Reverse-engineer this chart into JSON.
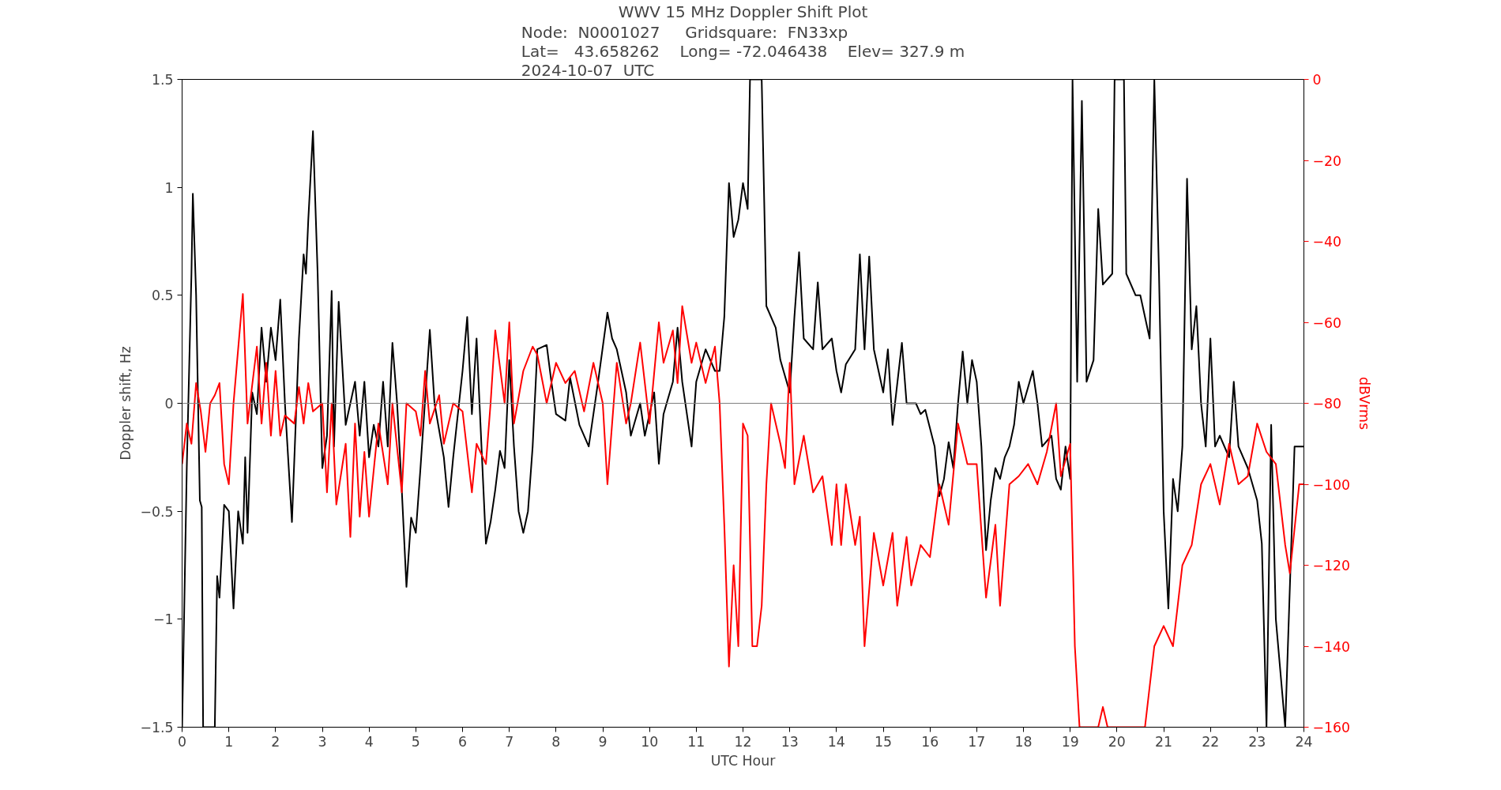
{
  "chart_data": {
    "type": "line",
    "title": "WWV 15 MHz Doppler Shift Plot",
    "subtitle": "Node:  N0001027     Gridsquare:  FN33xp\nLat=   43.658262    Long= -72.046438    Elev= 327.9 m\n2024-10-07  UTC",
    "xlabel": "UTC Hour",
    "ylabel": "Doppler shift, Hz",
    "y2label": "dBVrms",
    "xlim": [
      0,
      24
    ],
    "xticks": [
      0,
      1,
      2,
      3,
      4,
      5,
      6,
      7,
      8,
      9,
      10,
      11,
      12,
      13,
      14,
      15,
      16,
      17,
      18,
      19,
      20,
      21,
      22,
      23,
      24
    ],
    "ylim": [
      -1.5,
      1.5
    ],
    "yticks": [
      -1.5,
      -1.0,
      -0.5,
      0.0,
      0.5,
      1.0,
      1.5
    ],
    "y2lim": [
      -160,
      0
    ],
    "y2ticks": [
      -160,
      -140,
      -120,
      -100,
      -80,
      -60,
      -40,
      -20,
      0
    ],
    "grid": false,
    "ref_lines": [
      {
        "axis": "y",
        "value": 0,
        "color": "#808080"
      }
    ],
    "series": [
      {
        "color": "#000000",
        "x": [
          0.0,
          0.1,
          0.2,
          0.23,
          0.3,
          0.38,
          0.42,
          0.45,
          0.7,
          0.75,
          0.8,
          0.9,
          1.0,
          1.1,
          1.2,
          1.3,
          1.35,
          1.4,
          1.5,
          1.6,
          1.7,
          1.8,
          1.9,
          2.0,
          2.1,
          2.2,
          2.35,
          2.5,
          2.6,
          2.65,
          2.7,
          2.8,
          2.9,
          3.0,
          3.1,
          3.2,
          3.25,
          3.35,
          3.5,
          3.7,
          3.8,
          3.9,
          4.0,
          4.1,
          4.2,
          4.3,
          4.4,
          4.5,
          4.6,
          4.7,
          4.8,
          4.9,
          5.0,
          5.1,
          5.3,
          5.4,
          5.6,
          5.7,
          5.8,
          6.0,
          6.1,
          6.2,
          6.3,
          6.5,
          6.6,
          6.7,
          6.8,
          6.9,
          7.0,
          7.1,
          7.2,
          7.3,
          7.4,
          7.5,
          7.6,
          7.8,
          7.9,
          8.0,
          8.2,
          8.3,
          8.5,
          8.7,
          8.9,
          9.1,
          9.2,
          9.3,
          9.5,
          9.6,
          9.8,
          9.9,
          10.1,
          10.2,
          10.3,
          10.5,
          10.6,
          10.7,
          10.9,
          11.0,
          11.2,
          11.4,
          11.5,
          11.6,
          11.7,
          11.8,
          11.9,
          12.0,
          12.1,
          12.15,
          12.4,
          12.5,
          12.7,
          12.8,
          13.0,
          13.1,
          13.2,
          13.3,
          13.5,
          13.6,
          13.7,
          13.9,
          14.0,
          14.1,
          14.2,
          14.4,
          14.5,
          14.6,
          14.7,
          14.8,
          15.0,
          15.1,
          15.2,
          15.4,
          15.5,
          15.7,
          15.8,
          15.9,
          16.1,
          16.2,
          16.3,
          16.4,
          16.5,
          16.6,
          16.7,
          16.8,
          16.9,
          17.0,
          17.1,
          17.2,
          17.3,
          17.4,
          17.5,
          17.6,
          17.7,
          17.8,
          17.9,
          18.0,
          18.2,
          18.3,
          18.4,
          18.6,
          18.7,
          18.8,
          18.9,
          19.0,
          19.05,
          19.15,
          19.25,
          19.35,
          19.5,
          19.6,
          19.7,
          19.9,
          19.95,
          20.15,
          20.2,
          20.4,
          20.5,
          20.7,
          20.8,
          20.9,
          21.0,
          21.1,
          21.2,
          21.3,
          21.4,
          21.5,
          21.6,
          21.7,
          21.8,
          21.9,
          22.0,
          22.1,
          22.2,
          22.4,
          22.5,
          22.6,
          22.8,
          23.0,
          23.1,
          23.2,
          23.3,
          23.4,
          23.6,
          23.8,
          24.0
        ],
        "values": [
          -1.5,
          -0.3,
          0.6,
          0.97,
          0.5,
          -0.45,
          -0.48,
          -1.5,
          -1.5,
          -0.8,
          -0.9,
          -0.47,
          -0.5,
          -0.95,
          -0.5,
          -0.65,
          -0.25,
          -0.6,
          0.05,
          -0.05,
          0.35,
          0.1,
          0.35,
          0.2,
          0.48,
          0.0,
          -0.55,
          0.3,
          0.69,
          0.6,
          0.85,
          1.26,
          0.6,
          -0.3,
          -0.15,
          0.52,
          -0.2,
          0.47,
          -0.1,
          0.1,
          -0.15,
          0.1,
          -0.25,
          -0.1,
          -0.2,
          0.1,
          -0.2,
          0.28,
          0.0,
          -0.4,
          -0.85,
          -0.53,
          -0.6,
          -0.3,
          0.34,
          0.0,
          -0.25,
          -0.48,
          -0.25,
          0.15,
          0.4,
          -0.05,
          0.3,
          -0.65,
          -0.55,
          -0.4,
          -0.22,
          -0.3,
          0.2,
          -0.2,
          -0.5,
          -0.6,
          -0.5,
          -0.2,
          0.25,
          0.27,
          0.1,
          -0.05,
          -0.08,
          0.12,
          -0.1,
          -0.2,
          0.1,
          0.42,
          0.3,
          0.25,
          0.05,
          -0.15,
          0.0,
          -0.15,
          0.05,
          -0.28,
          -0.05,
          0.1,
          0.35,
          0.1,
          -0.2,
          0.1,
          0.25,
          0.15,
          0.15,
          0.4,
          1.02,
          0.77,
          0.85,
          1.02,
          0.9,
          1.5,
          1.5,
          0.45,
          0.35,
          0.2,
          0.05,
          0.4,
          0.7,
          0.3,
          0.25,
          0.56,
          0.25,
          0.3,
          0.15,
          0.05,
          0.18,
          0.25,
          0.69,
          0.25,
          0.68,
          0.25,
          0.05,
          0.25,
          -0.1,
          0.28,
          0.0,
          0.0,
          -0.05,
          -0.03,
          -0.2,
          -0.43,
          -0.35,
          -0.18,
          -0.3,
          0.0,
          0.24,
          0.0,
          0.2,
          0.1,
          -0.2,
          -0.68,
          -0.45,
          -0.3,
          -0.35,
          -0.25,
          -0.2,
          -0.1,
          0.1,
          0.0,
          0.15,
          0.0,
          -0.2,
          -0.15,
          -0.35,
          -0.4,
          -0.2,
          -0.35,
          1.5,
          0.1,
          1.4,
          0.1,
          0.2,
          0.9,
          0.55,
          0.6,
          1.5,
          1.5,
          0.6,
          0.5,
          0.5,
          0.3,
          1.5,
          0.6,
          -0.5,
          -0.95,
          -0.35,
          -0.5,
          -0.2,
          1.04,
          0.25,
          0.45,
          0.0,
          -0.2,
          0.3,
          -0.2,
          -0.15,
          -0.25,
          0.1,
          -0.2,
          -0.3,
          -0.45,
          -0.65,
          -1.5,
          -0.1,
          -1.0,
          -1.5,
          -0.2,
          -0.2
        ]
      },
      {
        "color": "#ff0000",
        "axis": "y2",
        "x": [
          0.0,
          0.1,
          0.2,
          0.3,
          0.4,
          0.5,
          0.6,
          0.7,
          0.8,
          0.9,
          1.0,
          1.1,
          1.3,
          1.4,
          1.6,
          1.7,
          1.8,
          1.9,
          2.0,
          2.1,
          2.2,
          2.4,
          2.5,
          2.6,
          2.7,
          2.8,
          3.0,
          3.1,
          3.2,
          3.3,
          3.5,
          3.6,
          3.7,
          3.8,
          3.9,
          4.0,
          4.2,
          4.4,
          4.5,
          4.7,
          4.8,
          5.0,
          5.1,
          5.2,
          5.3,
          5.5,
          5.6,
          5.8,
          6.0,
          6.2,
          6.3,
          6.5,
          6.6,
          6.7,
          6.9,
          7.0,
          7.1,
          7.3,
          7.5,
          7.6,
          7.8,
          8.0,
          8.2,
          8.4,
          8.6,
          8.8,
          9.0,
          9.1,
          9.3,
          9.5,
          9.6,
          9.8,
          10.0,
          10.2,
          10.3,
          10.5,
          10.6,
          10.7,
          10.9,
          11.0,
          11.2,
          11.4,
          11.5,
          11.6,
          11.7,
          11.8,
          11.9,
          12.0,
          12.1,
          12.2,
          12.3,
          12.4,
          12.5,
          12.6,
          12.8,
          12.9,
          13.0,
          13.1,
          13.3,
          13.5,
          13.7,
          13.9,
          14.0,
          14.1,
          14.2,
          14.4,
          14.5,
          14.6,
          14.8,
          15.0,
          15.2,
          15.3,
          15.5,
          15.6,
          15.8,
          16.0,
          16.2,
          16.4,
          16.6,
          16.8,
          17.0,
          17.2,
          17.4,
          17.5,
          17.7,
          17.9,
          18.1,
          18.3,
          18.5,
          18.7,
          18.8,
          19.0,
          19.1,
          19.2,
          19.6,
          19.7,
          19.8,
          20.6,
          20.8,
          21.0,
          21.2,
          21.4,
          21.6,
          21.8,
          22.0,
          22.2,
          22.4,
          22.6,
          22.8,
          23.0,
          23.2,
          23.4,
          23.6,
          23.7,
          23.9,
          24.0
        ],
        "values": [
          -95,
          -85,
          -90,
          -75,
          -82,
          -92,
          -80,
          -78,
          -75,
          -95,
          -100,
          -80,
          -53,
          -85,
          -66,
          -85,
          -70,
          -88,
          -72,
          -88,
          -83,
          -85,
          -76,
          -85,
          -75,
          -82,
          -80,
          -102,
          -80,
          -105,
          -90,
          -113,
          -85,
          -108,
          -92,
          -108,
          -85,
          -100,
          -80,
          -102,
          -80,
          -82,
          -88,
          -72,
          -85,
          -78,
          -90,
          -80,
          -82,
          -102,
          -90,
          -95,
          -80,
          -62,
          -80,
          -60,
          -85,
          -72,
          -66,
          -68,
          -80,
          -70,
          -75,
          -72,
          -82,
          -70,
          -80,
          -100,
          -70,
          -85,
          -80,
          -65,
          -85,
          -60,
          -70,
          -62,
          -75,
          -56,
          -70,
          -65,
          -75,
          -66,
          -80,
          -110,
          -145,
          -120,
          -140,
          -85,
          -88,
          -140,
          -140,
          -130,
          -100,
          -80,
          -90,
          -96,
          -70,
          -100,
          -88,
          -102,
          -98,
          -115,
          -100,
          -115,
          -100,
          -115,
          -108,
          -140,
          -112,
          -125,
          -112,
          -130,
          -113,
          -125,
          -115,
          -118,
          -100,
          -110,
          -85,
          -95,
          -95,
          -128,
          -110,
          -130,
          -100,
          -98,
          -95,
          -100,
          -92,
          -80,
          -98,
          -90,
          -140,
          -160,
          -160,
          -155,
          -160,
          -160,
          -140,
          -135,
          -140,
          -120,
          -115,
          -100,
          -95,
          -105,
          -90,
          -100,
          -98,
          -85,
          -92,
          -95,
          -115,
          -122,
          -100,
          -100
        ]
      }
    ]
  }
}
